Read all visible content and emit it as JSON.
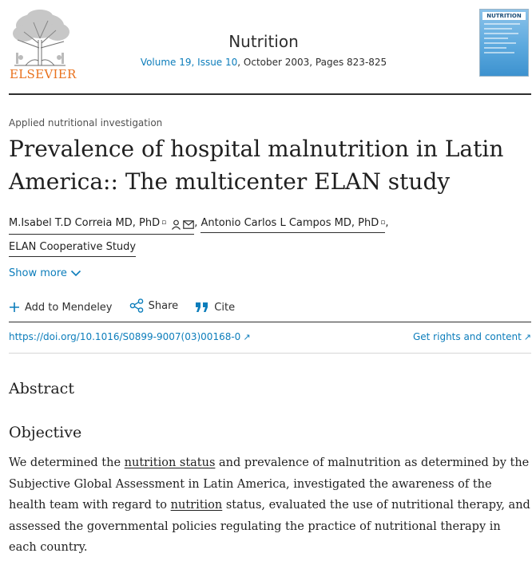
{
  "header": {
    "publisher": "ELSEVIER",
    "journal": "Nutrition",
    "volume_issue": "Volume 19, Issue 10",
    "date_pages": ", October 2003, Pages 823-825",
    "cover_title": "NUTRITION"
  },
  "article": {
    "type": "Applied nutritional investigation",
    "title": "Prevalence of hospital malnutrition in Latin America:: The multicenter ELAN study",
    "authors": [
      {
        "name": "M.Isabel T.D Correia MD, PhD"
      },
      {
        "name": "Antonio Carlos L Campos MD, PhD"
      },
      {
        "name": "ELAN Cooperative Study"
      }
    ],
    "author_separator": ",",
    "show_more": "Show more"
  },
  "actions": {
    "mendeley": "Add to Mendeley",
    "share": "Share",
    "cite": "Cite"
  },
  "links": {
    "doi": "https://doi.org/10.1016/S0899-9007(03)00168-0",
    "rights": "Get rights and content"
  },
  "abstract": {
    "heading": "Abstract",
    "objective_heading": "Objective",
    "part1": "We determined the ",
    "term1": "nutrition status",
    "part2": " and prevalence of malnutrition as determined by the Subjective Global Assessment in Latin America, investigated the awareness of the health team with regard to ",
    "term2": "nutrition",
    "part3": " status, evaluated the use of nutritional therapy, and assessed the governmental policies regulating the practice of nutritional therapy in each country."
  },
  "icons": {
    "person": "person-icon",
    "email": "envelope-icon",
    "chevron": "chevron-down-icon",
    "plus": "plus-icon",
    "share": "share-icon",
    "cite": "quote-icon",
    "external": "external-link-icon"
  },
  "colors": {
    "link": "#0c7dbb",
    "publisher_orange": "#e9711c",
    "text": "#1f1f1f"
  }
}
